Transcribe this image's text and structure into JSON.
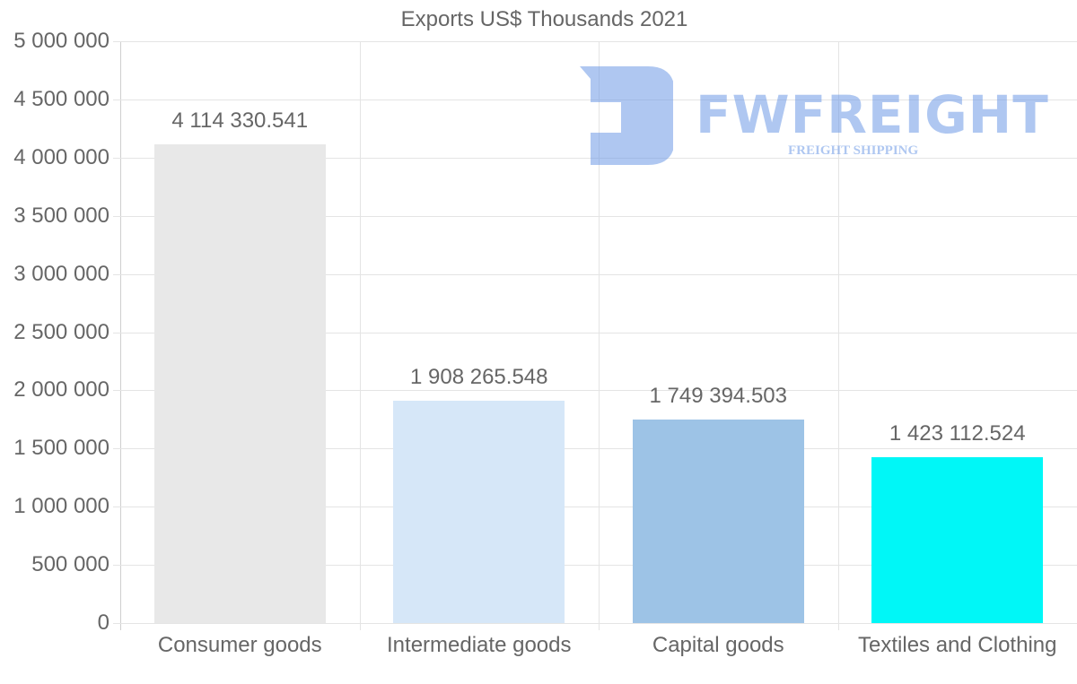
{
  "chart_data": {
    "type": "bar",
    "title": "Exports US$ Thousands 2021",
    "categories": [
      "Consumer goods",
      "Intermediate goods",
      "Capital goods",
      "Textiles and Clothing"
    ],
    "values": [
      4114330.541,
      1908265.548,
      1749394.503,
      1423112.524
    ],
    "value_labels": [
      "4 114 330.541",
      "1 908 265.548",
      "1 749 394.503",
      "1 423 112.524"
    ],
    "colors": [
      "#e8e8e8",
      "#d6e7f8",
      "#9dc3e6",
      "#00f7f7"
    ],
    "xlabel": "",
    "ylabel": "",
    "ylim": [
      0,
      5000000
    ],
    "yticks": [
      0,
      500000,
      1000000,
      1500000,
      2000000,
      2500000,
      3000000,
      3500000,
      4000000,
      4500000,
      5000000
    ],
    "ytick_labels": [
      "0",
      "500 000",
      "1 000 000",
      "1 500 000",
      "2 000 000",
      "2 500 000",
      "3 000 000",
      "3 500 000",
      "4 000 000",
      "4 500 000",
      "5 000 000"
    ],
    "grid": true,
    "legend": "none"
  },
  "watermark": {
    "brand": "FWFREIGHT",
    "tagline": "FREIGHT SHIPPING",
    "color": "#6e9be6"
  }
}
